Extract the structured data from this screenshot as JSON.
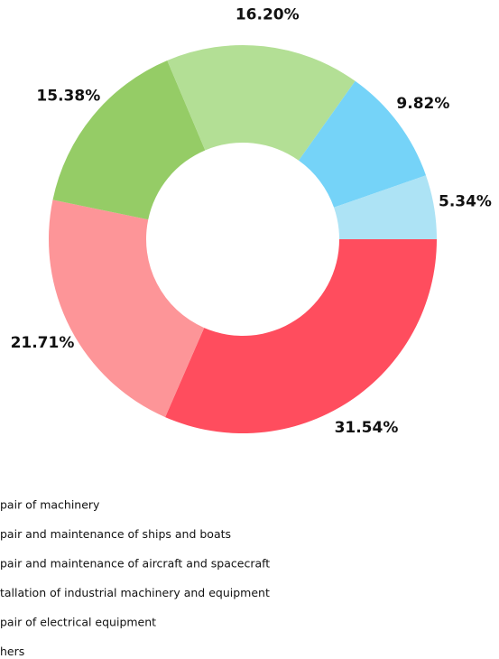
{
  "chart_data": {
    "type": "donut",
    "categories": [
      "pair of machinery",
      "pair and maintenance of ships and boats",
      "pair and maintenance of aircraft and spacecraft",
      "tallation of industrial machinery and equipment",
      "pair of electrical equipment",
      "hers"
    ],
    "values": [
      31.54,
      21.71,
      15.38,
      16.2,
      9.82,
      5.34
    ],
    "value_labels": [
      "31.54%",
      "21.71%",
      "15.38%",
      "16.20%",
      "9.82%",
      "5.34%"
    ],
    "colors": [
      "#ff4d5e",
      "#fd9598",
      "#95cc66",
      "#b3df95",
      "#75d3f8",
      "#ade3f5"
    ]
  }
}
